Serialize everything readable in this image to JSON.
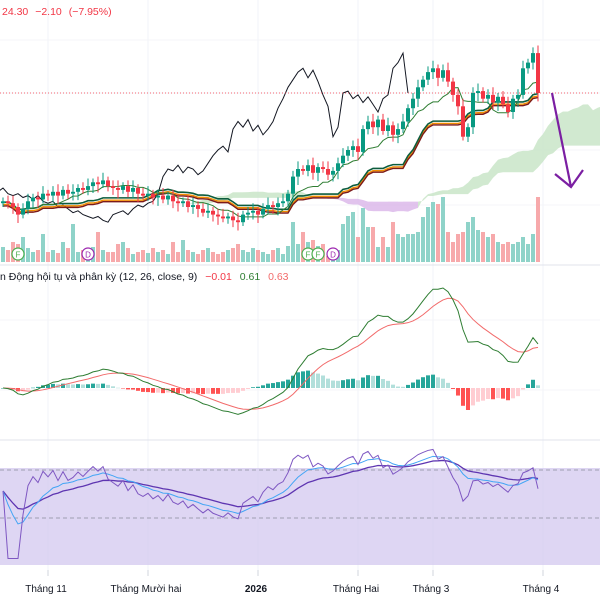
{
  "header": {
    "price": "24.30",
    "change": "−2.10",
    "change_pct": "(−7.95%)"
  },
  "macd_legend": {
    "title": "n Động hội tụ và phân kỳ (12, 26, close, 9)",
    "histogram": "−0.01",
    "macd": "0.61",
    "signal": "0.63"
  },
  "time_axis": [
    {
      "label": "Tháng 11",
      "bar": 9,
      "bold": false
    },
    {
      "label": "Tháng Mười hai",
      "bar": 29,
      "bold": false
    },
    {
      "label": "2026",
      "bar": 51,
      "bold": true
    },
    {
      "label": "Tháng Hai",
      "bar": 71,
      "bold": false
    },
    {
      "label": "Tháng 3",
      "bar": 86,
      "bold": false
    },
    {
      "label": "Tháng 4",
      "bar": 108,
      "bold": false
    }
  ],
  "markers": [
    {
      "label": "F",
      "bar": 3,
      "kind": "F"
    },
    {
      "label": "D",
      "bar": 17,
      "kind": "D"
    },
    {
      "label": "F",
      "bar": 61,
      "kind": "F"
    },
    {
      "label": "F",
      "bar": 63,
      "kind": "F"
    },
    {
      "label": "D",
      "bar": 66,
      "kind": "D"
    }
  ],
  "colors": {
    "up": "#089981",
    "down": "#f23645",
    "vol_up": "#8fd3c9",
    "vol_down": "#f7a9ab",
    "cloud_up": "#c9e5c8",
    "cloud_down": "#dcb8ea",
    "tenkan": "#2e7d32",
    "kijun": "#0d5c3d",
    "base": "#7b1a1a",
    "base2": "#f28c00",
    "chikou": "#131722",
    "arrow": "#7b1fa2",
    "rsi": "#7e57c2",
    "rsi_ma": "#42a5f5",
    "rsi_band": "#d6ccf0",
    "macd": "#2e7d32",
    "signal": "#f26b6b"
  },
  "chart_data": {
    "type": "candlestick",
    "last_price": 24.3,
    "close": [
      18.6,
      18.5,
      18.3,
      17.9,
      18.2,
      18.6,
      18.8,
      18.7,
      19.0,
      18.9,
      19.1,
      18.9,
      19.2,
      19.0,
      19.1,
      19.3,
      19.2,
      19.4,
      19.6,
      19.5,
      19.7,
      19.4,
      19.3,
      19.2,
      19.4,
      19.1,
      19.3,
      19.0,
      18.9,
      19.0,
      18.8,
      18.9,
      18.7,
      18.9,
      18.6,
      18.5,
      18.6,
      18.3,
      18.4,
      18.2,
      18.0,
      18.1,
      17.9,
      17.8,
      17.7,
      17.8,
      17.6,
      17.5,
      17.9,
      18.0,
      18.1,
      17.9,
      18.2,
      18.4,
      18.3,
      18.5,
      18.6,
      19.0,
      19.9,
      20.3,
      20.2,
      20.5,
      20.1,
      20.4,
      20.3,
      20.0,
      20.2,
      20.6,
      21.0,
      21.3,
      21.5,
      21.2,
      22.4,
      22.8,
      22.5,
      22.9,
      22.3,
      22.6,
      22.1,
      22.4,
      22.8,
      23.5,
      24.0,
      24.6,
      25.0,
      25.4,
      25.6,
      25.1,
      25.5,
      24.9,
      24.2,
      23.6,
      22.0,
      22.5,
      24.3,
      24.4,
      24.0,
      24.2,
      23.8,
      24.1,
      23.7,
      23.3,
      24.0,
      24.2,
      25.6,
      25.9,
      26.4,
      24.3
    ],
    "volume": [
      15,
      12,
      20,
      18,
      25,
      14,
      10,
      12,
      28,
      10,
      12,
      9,
      20,
      14,
      38,
      10,
      12,
      8,
      15,
      30,
      12,
      10,
      10,
      18,
      20,
      14,
      8,
      10,
      12,
      9,
      14,
      10,
      12,
      8,
      20,
      10,
      22,
      12,
      10,
      8,
      12,
      14,
      10,
      8,
      10,
      12,
      14,
      18,
      12,
      10,
      14,
      12,
      10,
      8,
      12,
      14,
      8,
      16,
      40,
      18,
      30,
      20,
      22,
      16,
      18,
      6,
      4,
      12,
      38,
      46,
      50,
      25,
      54,
      35,
      35,
      15,
      25,
      15,
      40,
      28,
      25,
      28,
      28,
      30,
      45,
      55,
      60,
      58,
      65,
      30,
      20,
      28,
      30,
      40,
      45,
      32,
      30,
      25,
      28,
      20,
      18,
      20,
      18,
      20,
      25,
      18,
      28,
      65
    ],
    "indicators": [
      "Ichimoku",
      "Volume",
      "MACD (12, 26, close, 9)",
      "RSI"
    ],
    "rsi_levels": [
      70,
      30
    ]
  }
}
